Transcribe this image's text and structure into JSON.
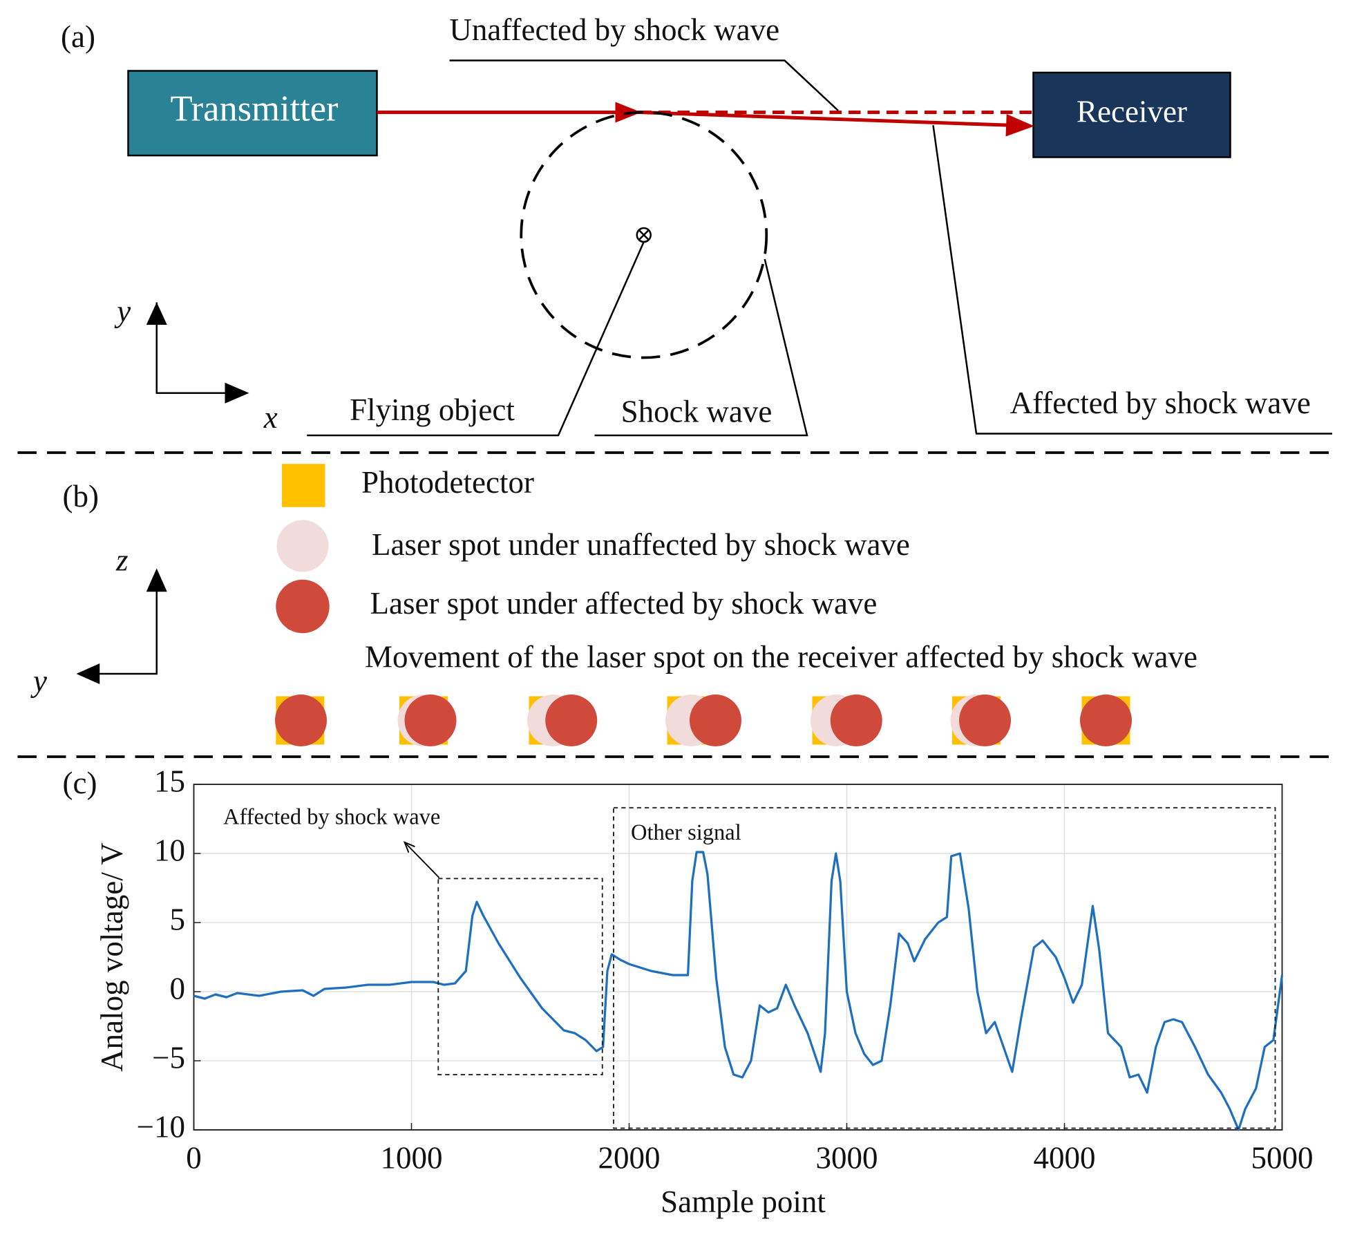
{
  "panel_a": {
    "label": "(a)",
    "transmitter": "Transmitter",
    "receiver": "Receiver",
    "unaffected": "Unaffected by shock wave",
    "flying_object": "Flying object",
    "shock_wave": "Shock wave",
    "affected": "Affected by shock wave",
    "axis_y": "y",
    "axis_x": "x"
  },
  "panel_b": {
    "label": "(b)",
    "legend": [
      "Photodetector",
      "Laser spot under unaffected by shock wave",
      "Laser spot under affected by shock wave"
    ],
    "movement": "Movement of the laser spot on the receiver affected by shock wave",
    "axis_z": "z",
    "axis_y": "y"
  },
  "chart_data": {
    "type": "line",
    "panel_label": "(c)",
    "xlabel": "Sample point",
    "ylabel": "Analog voltage/ V",
    "annotations": [
      "Affected by shock wave",
      "Other signal"
    ],
    "x": [
      0,
      50,
      100,
      150,
      200,
      300,
      400,
      500,
      550,
      600,
      700,
      800,
      900,
      1000,
      1100,
      1150,
      1200,
      1250,
      1280,
      1300,
      1330,
      1400,
      1500,
      1600,
      1700,
      1750,
      1800,
      1850,
      1880,
      1900,
      1920,
      1960,
      2000,
      2100,
      2200,
      2270,
      2290,
      2310,
      2340,
      2360,
      2400,
      2440,
      2480,
      2520,
      2560,
      2600,
      2640,
      2680,
      2720,
      2760,
      2820,
      2880,
      2900,
      2930,
      2950,
      2970,
      3000,
      3040,
      3080,
      3120,
      3160,
      3200,
      3240,
      3280,
      3310,
      3360,
      3420,
      3460,
      3480,
      3520,
      3560,
      3600,
      3640,
      3680,
      3720,
      3760,
      3800,
      3860,
      3900,
      3960,
      4000,
      4040,
      4080,
      4130,
      4160,
      4200,
      4260,
      4300,
      4340,
      4380,
      4420,
      4460,
      4500,
      4540,
      4600,
      4660,
      4720,
      4760,
      4800,
      4830,
      4880,
      4920,
      4960,
      5000
    ],
    "series": [
      {
        "color": "#1f6fbf",
        "values": [
          -0.3,
          -0.5,
          -0.2,
          -0.4,
          -0.1,
          -0.3,
          0,
          0.1,
          -0.3,
          0.2,
          0.3,
          0.5,
          0.5,
          0.7,
          0.7,
          0.5,
          0.6,
          1.5,
          5.5,
          6.5,
          5.5,
          3.5,
          1.0,
          -1.2,
          -2.8,
          -3.0,
          -3.5,
          -4.3,
          -4.0,
          1.5,
          2.7,
          2.3,
          2.0,
          1.5,
          1.2,
          1.2,
          8,
          10.1,
          10.1,
          8.5,
          1,
          -4,
          -6,
          -6.2,
          -5,
          -1,
          -1.5,
          -1.2,
          0.5,
          -1,
          -3,
          -5.8,
          -3,
          8,
          10,
          8,
          0,
          -3,
          -4.5,
          -5.3,
          -5,
          -1,
          4.2,
          3.5,
          2.2,
          3.8,
          5,
          5.4,
          9.8,
          10,
          6,
          0,
          -3,
          -2.2,
          -4,
          -5.8,
          -2,
          3.2,
          3.7,
          2.5,
          1,
          -0.8,
          0.5,
          6.2,
          3,
          -3,
          -4,
          -6.2,
          -6,
          -7.3,
          -4,
          -2.2,
          -2,
          -2.2,
          -4,
          -6,
          -7.3,
          -8.5,
          -10,
          -8.5,
          -7,
          -4,
          -3.5,
          1.2
        ]
      }
    ],
    "xlim": [
      0,
      5000
    ],
    "ylim": [
      -10,
      15
    ],
    "xticks": [
      0,
      1000,
      2000,
      3000,
      4000,
      5000
    ],
    "yticks": [
      {
        "value": -10,
        "label": "−10"
      },
      {
        "value": -5,
        "label": "−5"
      },
      0,
      5,
      10,
      15
    ],
    "grid": true
  }
}
